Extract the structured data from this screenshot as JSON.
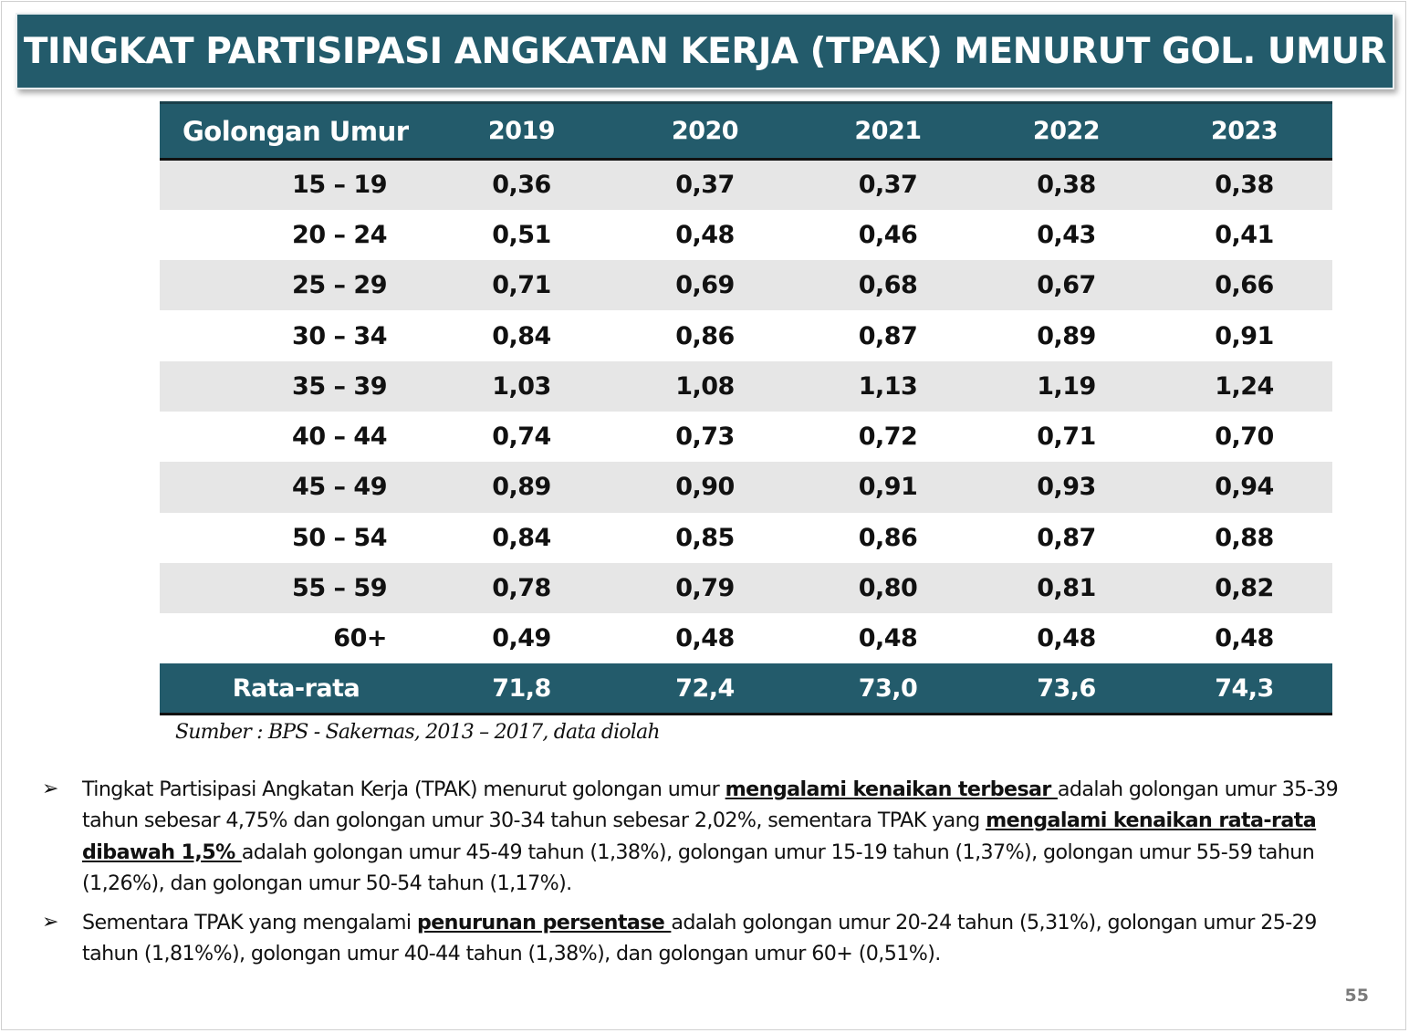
{
  "title": "TINGKAT PARTISIPASI ANGKATAN KERJA (TPAK) MENURUT GOL. UMUR",
  "table": {
    "header_label": "Golongan Umur",
    "years": [
      "2019",
      "2020",
      "2021",
      "2022",
      "2023"
    ],
    "rows": [
      {
        "age": "15 – 19",
        "values": [
          "0,36",
          "0,37",
          "0,37",
          "0,38",
          "0,38"
        ]
      },
      {
        "age": "20 – 24",
        "values": [
          "0,51",
          "0,48",
          "0,46",
          "0,43",
          "0,41"
        ]
      },
      {
        "age": "25 – 29",
        "values": [
          "0,71",
          "0,69",
          "0,68",
          "0,67",
          "0,66"
        ]
      },
      {
        "age": "30 – 34",
        "values": [
          "0,84",
          "0,86",
          "0,87",
          "0,89",
          "0,91"
        ]
      },
      {
        "age": "35 – 39",
        "values": [
          "1,03",
          "1,08",
          "1,13",
          "1,19",
          "1,24"
        ]
      },
      {
        "age": "40 – 44",
        "values": [
          "0,74",
          "0,73",
          "0,72",
          "0,71",
          "0,70"
        ]
      },
      {
        "age": "45 – 49",
        "values": [
          "0,89",
          "0,90",
          "0,91",
          "0,93",
          "0,94"
        ]
      },
      {
        "age": "50 – 54",
        "values": [
          "0,84",
          "0,85",
          "0,86",
          "0,87",
          "0,88"
        ]
      },
      {
        "age": "55 – 59",
        "values": [
          "0,78",
          "0,79",
          "0,80",
          "0,81",
          "0,82"
        ]
      },
      {
        "age": "60+",
        "values": [
          "0,49",
          "0,48",
          "0,48",
          "0,48",
          "0,48"
        ]
      }
    ],
    "footer": {
      "label": "Rata-rata",
      "values": [
        "71,8",
        "72,4",
        "73,0",
        "73,6",
        "74,3"
      ]
    }
  },
  "source": "Sumber : BPS - Sakernas, 2013  –  2017, data diolah",
  "bullets": [
    {
      "icon": "➢",
      "segments": [
        {
          "text": "Tingkat Partisipasi Angkatan Kerja (TPAK) menurut golongan umur ",
          "emph": false
        },
        {
          "text": "mengalami kenaikan terbesar ",
          "emph": true
        },
        {
          "text": " adalah golongan umur 35-39 tahun sebesar 4,75% dan golongan umur 30-34 tahun sebesar 2,02%, sementara TPAK yang ",
          "emph": false
        },
        {
          "text": "mengalami kenaikan rata-rata dibawah 1,5% ",
          "emph": true
        },
        {
          "text": "adalah golongan umur 45-49 tahun (1,38%), golongan umur 15-19 tahun (1,37%), golongan umur 55-59 tahun (1,26%), dan golongan umur 50-54 tahun (1,17%).",
          "emph": false
        }
      ]
    },
    {
      "icon": "➢",
      "segments": [
        {
          "text": "Sementara TPAK yang mengalami ",
          "emph": false
        },
        {
          "text": "penurunan persentase ",
          "emph": true
        },
        {
          "text": "adalah golongan umur 20-24 tahun (5,31%), golongan umur 25-29 tahun (1,81%%), golongan umur 40-44 tahun (1,38%), dan golongan umur 60+ (0,51%).",
          "emph": false
        }
      ]
    }
  ],
  "page_number": "55",
  "colors": {
    "banner": "#235b6b",
    "row_stripe": "#e6e6e6"
  }
}
